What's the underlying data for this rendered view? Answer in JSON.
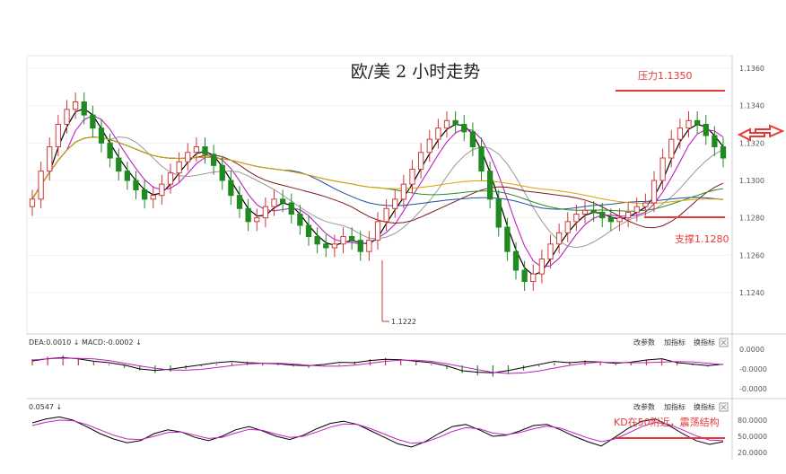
{
  "chart_data": {
    "type": "candlestick",
    "title": "欧/美 2 小时走势",
    "colors": {
      "up": "#cf3a3a",
      "down": "#1f8a1f",
      "macd_line": "#c020c0",
      "kd_k": "#000000",
      "kd_d": "#c020c0",
      "annotation": "#e53935"
    },
    "main": {
      "yticks": [
        "1.1360",
        "1.1340",
        "1.1320",
        "1.1300",
        "1.1280",
        "1.1260",
        "1.1240"
      ],
      "ylim": [
        1.1222,
        1.1362
      ],
      "low_label": "1.1222",
      "resistance": {
        "label": "压力1.1350",
        "value": 1.135
      },
      "support": {
        "label": "支撑1.1280",
        "value": 1.128
      },
      "closes": [
        1.129,
        1.1305,
        1.1318,
        1.133,
        1.1338,
        1.1342,
        1.1335,
        1.1328,
        1.132,
        1.1312,
        1.1305,
        1.13,
        1.1295,
        1.129,
        1.1292,
        1.1298,
        1.1304,
        1.131,
        1.1315,
        1.1318,
        1.1314,
        1.1308,
        1.13,
        1.1292,
        1.1285,
        1.1278,
        1.128,
        1.1286,
        1.129,
        1.1288,
        1.1282,
        1.1276,
        1.127,
        1.1266,
        1.1264,
        1.1266,
        1.127,
        1.1268,
        1.1262,
        1.1268,
        1.1278,
        1.1285,
        1.129,
        1.1298,
        1.1306,
        1.1315,
        1.1322,
        1.1328,
        1.1332,
        1.133,
        1.1326,
        1.1318,
        1.1305,
        1.129,
        1.1275,
        1.1262,
        1.1252,
        1.1246,
        1.125,
        1.1258,
        1.1266,
        1.1272,
        1.1278,
        1.1282,
        1.1284,
        1.1283,
        1.128,
        1.1278,
        1.128,
        1.1283,
        1.1286,
        1.1288,
        1.13,
        1.1312,
        1.1322,
        1.1328,
        1.1332,
        1.133,
        1.1324,
        1.1318,
        1.1312
      ]
    },
    "macd": {
      "label": "DEA:0.0010 ↓ MACD:-0.0002 ↓",
      "yticks": [
        "0.0000",
        "-0.0000",
        "-0.0000"
      ],
      "hist": [
        0.5,
        0.7,
        0.8,
        0.6,
        0.3,
        0.1,
        -0.2,
        -0.4,
        -0.6,
        -0.5,
        -0.3,
        -0.1,
        0.1,
        0.2,
        0.3,
        0.2,
        0.1,
        -0.1,
        -0.2,
        -0.1,
        0.1,
        0.3,
        0.5,
        0.6,
        0.5,
        0.3,
        0.1,
        -0.3,
        -0.6,
        -0.8,
        -0.9,
        -0.7,
        -0.4,
        -0.1,
        0.2,
        0.3,
        0.4,
        0.3,
        0.1,
        0.2,
        0.4,
        0.5,
        0.3,
        0.1,
        -0.1,
        0.0
      ]
    },
    "kd": {
      "label": "0.0547 ↓",
      "yticks": [
        "80.0000",
        "50.0000",
        "20.0000"
      ],
      "annotation": "KD在50附近，震荡结构",
      "k": [
        75,
        82,
        86,
        80,
        68,
        55,
        45,
        38,
        42,
        55,
        62,
        58,
        48,
        42,
        50,
        62,
        68,
        60,
        50,
        44,
        52,
        64,
        74,
        78,
        72,
        60,
        48,
        36,
        30,
        40,
        55,
        68,
        72,
        62,
        50,
        52,
        60,
        70,
        72,
        62,
        50,
        40,
        32,
        48,
        65,
        78,
        82,
        70,
        55,
        42,
        35,
        40
      ],
      "d": [
        70,
        76,
        80,
        79,
        72,
        62,
        52,
        45,
        44,
        50,
        57,
        58,
        52,
        46,
        48,
        56,
        63,
        61,
        54,
        48,
        50,
        58,
        67,
        73,
        72,
        64,
        54,
        44,
        37,
        39,
        48,
        59,
        66,
        64,
        56,
        53,
        57,
        64,
        69,
        65,
        56,
        47,
        40,
        45,
        56,
        68,
        76,
        72,
        62,
        51,
        43,
        42
      ]
    },
    "panel_buttons": [
      "改参数",
      "加指标",
      "换指标"
    ]
  }
}
